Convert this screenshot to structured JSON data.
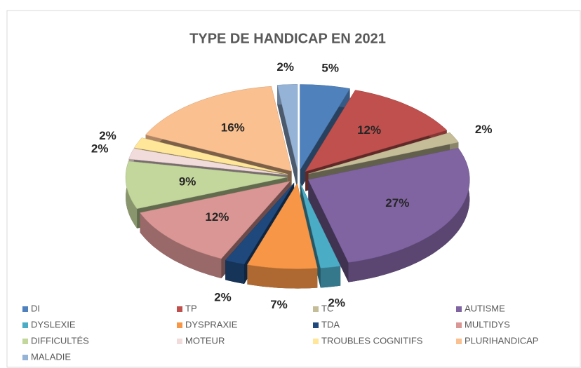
{
  "chart_data": {
    "type": "pie3d",
    "title": "TYPE DE HANDICAP EN 2021",
    "categories": [
      "DI",
      "TP",
      "TC",
      "AUTISME",
      "DYSLEXIE",
      "DYSPRAXIE",
      "TDA",
      "MULTIDYS",
      "DIFFICULTÉS",
      "MOTEUR",
      "TROUBLES COGNITIFS",
      "PLURIHANDICAP",
      "MALADIE"
    ],
    "values": [
      5,
      12,
      2,
      27,
      2,
      7,
      2,
      12,
      9,
      2,
      2,
      16,
      2
    ],
    "value_labels": [
      "5%",
      "12%",
      "2%",
      "27%",
      "2%",
      "7%",
      "2%",
      "12%",
      "9%",
      "2%",
      "2%",
      "16%",
      "2%"
    ],
    "colors": [
      "#4f81bd",
      "#c0504d",
      "#c4bd97",
      "#8064a2",
      "#4bacc6",
      "#f79646",
      "#1f497d",
      "#d99694",
      "#c3d69b",
      "#f2dcdb",
      "#ffe699",
      "#fac090",
      "#95b3d7"
    ],
    "legend": "bottom"
  }
}
